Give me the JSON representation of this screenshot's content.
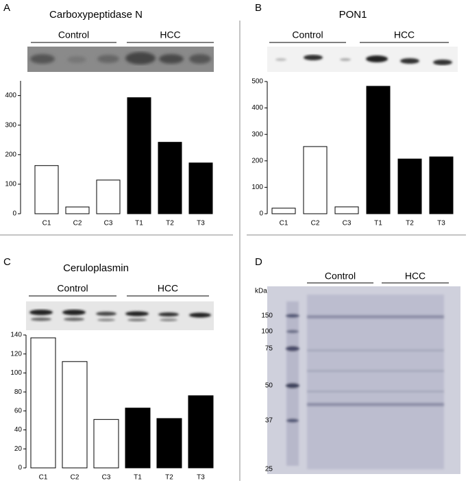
{
  "chart_data": [
    {
      "type": "bar",
      "panel": "A",
      "title": "Carboxypeptidase N",
      "groups": [
        "Control",
        "HCC"
      ],
      "categories": [
        "C1",
        "C2",
        "C3",
        "T1",
        "T2",
        "T3"
      ],
      "values": [
        163,
        23,
        114,
        393,
        242,
        172
      ],
      "colors": [
        "#ffffff",
        "#ffffff",
        "#ffffff",
        "#000000",
        "#000000",
        "#000000"
      ],
      "ylim": [
        0,
        450
      ],
      "yticks": [
        0,
        100,
        200,
        300,
        400
      ]
    },
    {
      "type": "bar",
      "panel": "B",
      "title": "PON1",
      "groups": [
        "Control",
        "HCC"
      ],
      "categories": [
        "C1",
        "C2",
        "C3",
        "T1",
        "T2",
        "T3"
      ],
      "values": [
        21,
        254,
        26,
        482,
        207,
        215
      ],
      "colors": [
        "#ffffff",
        "#ffffff",
        "#ffffff",
        "#000000",
        "#000000",
        "#000000"
      ],
      "ylim": [
        0,
        500
      ],
      "yticks": [
        0,
        100,
        200,
        300,
        400,
        500
      ]
    },
    {
      "type": "bar",
      "panel": "C",
      "title": "Ceruloplasmin",
      "groups": [
        "Control",
        "HCC"
      ],
      "categories": [
        "C1",
        "C2",
        "C3",
        "T1",
        "T2",
        "T3"
      ],
      "values": [
        137,
        112,
        51,
        63,
        52,
        76
      ],
      "colors": [
        "#ffffff",
        "#ffffff",
        "#ffffff",
        "#000000",
        "#000000",
        "#000000"
      ],
      "ylim": [
        0,
        140
      ],
      "yticks": [
        0,
        20,
        40,
        60,
        80,
        100,
        120,
        140
      ]
    }
  ],
  "gel": {
    "panel": "D",
    "unit": "kDa",
    "groups": [
      "Control",
      "HCC"
    ],
    "markers": [
      "150",
      "100",
      "75",
      "50",
      "37",
      "25"
    ]
  }
}
